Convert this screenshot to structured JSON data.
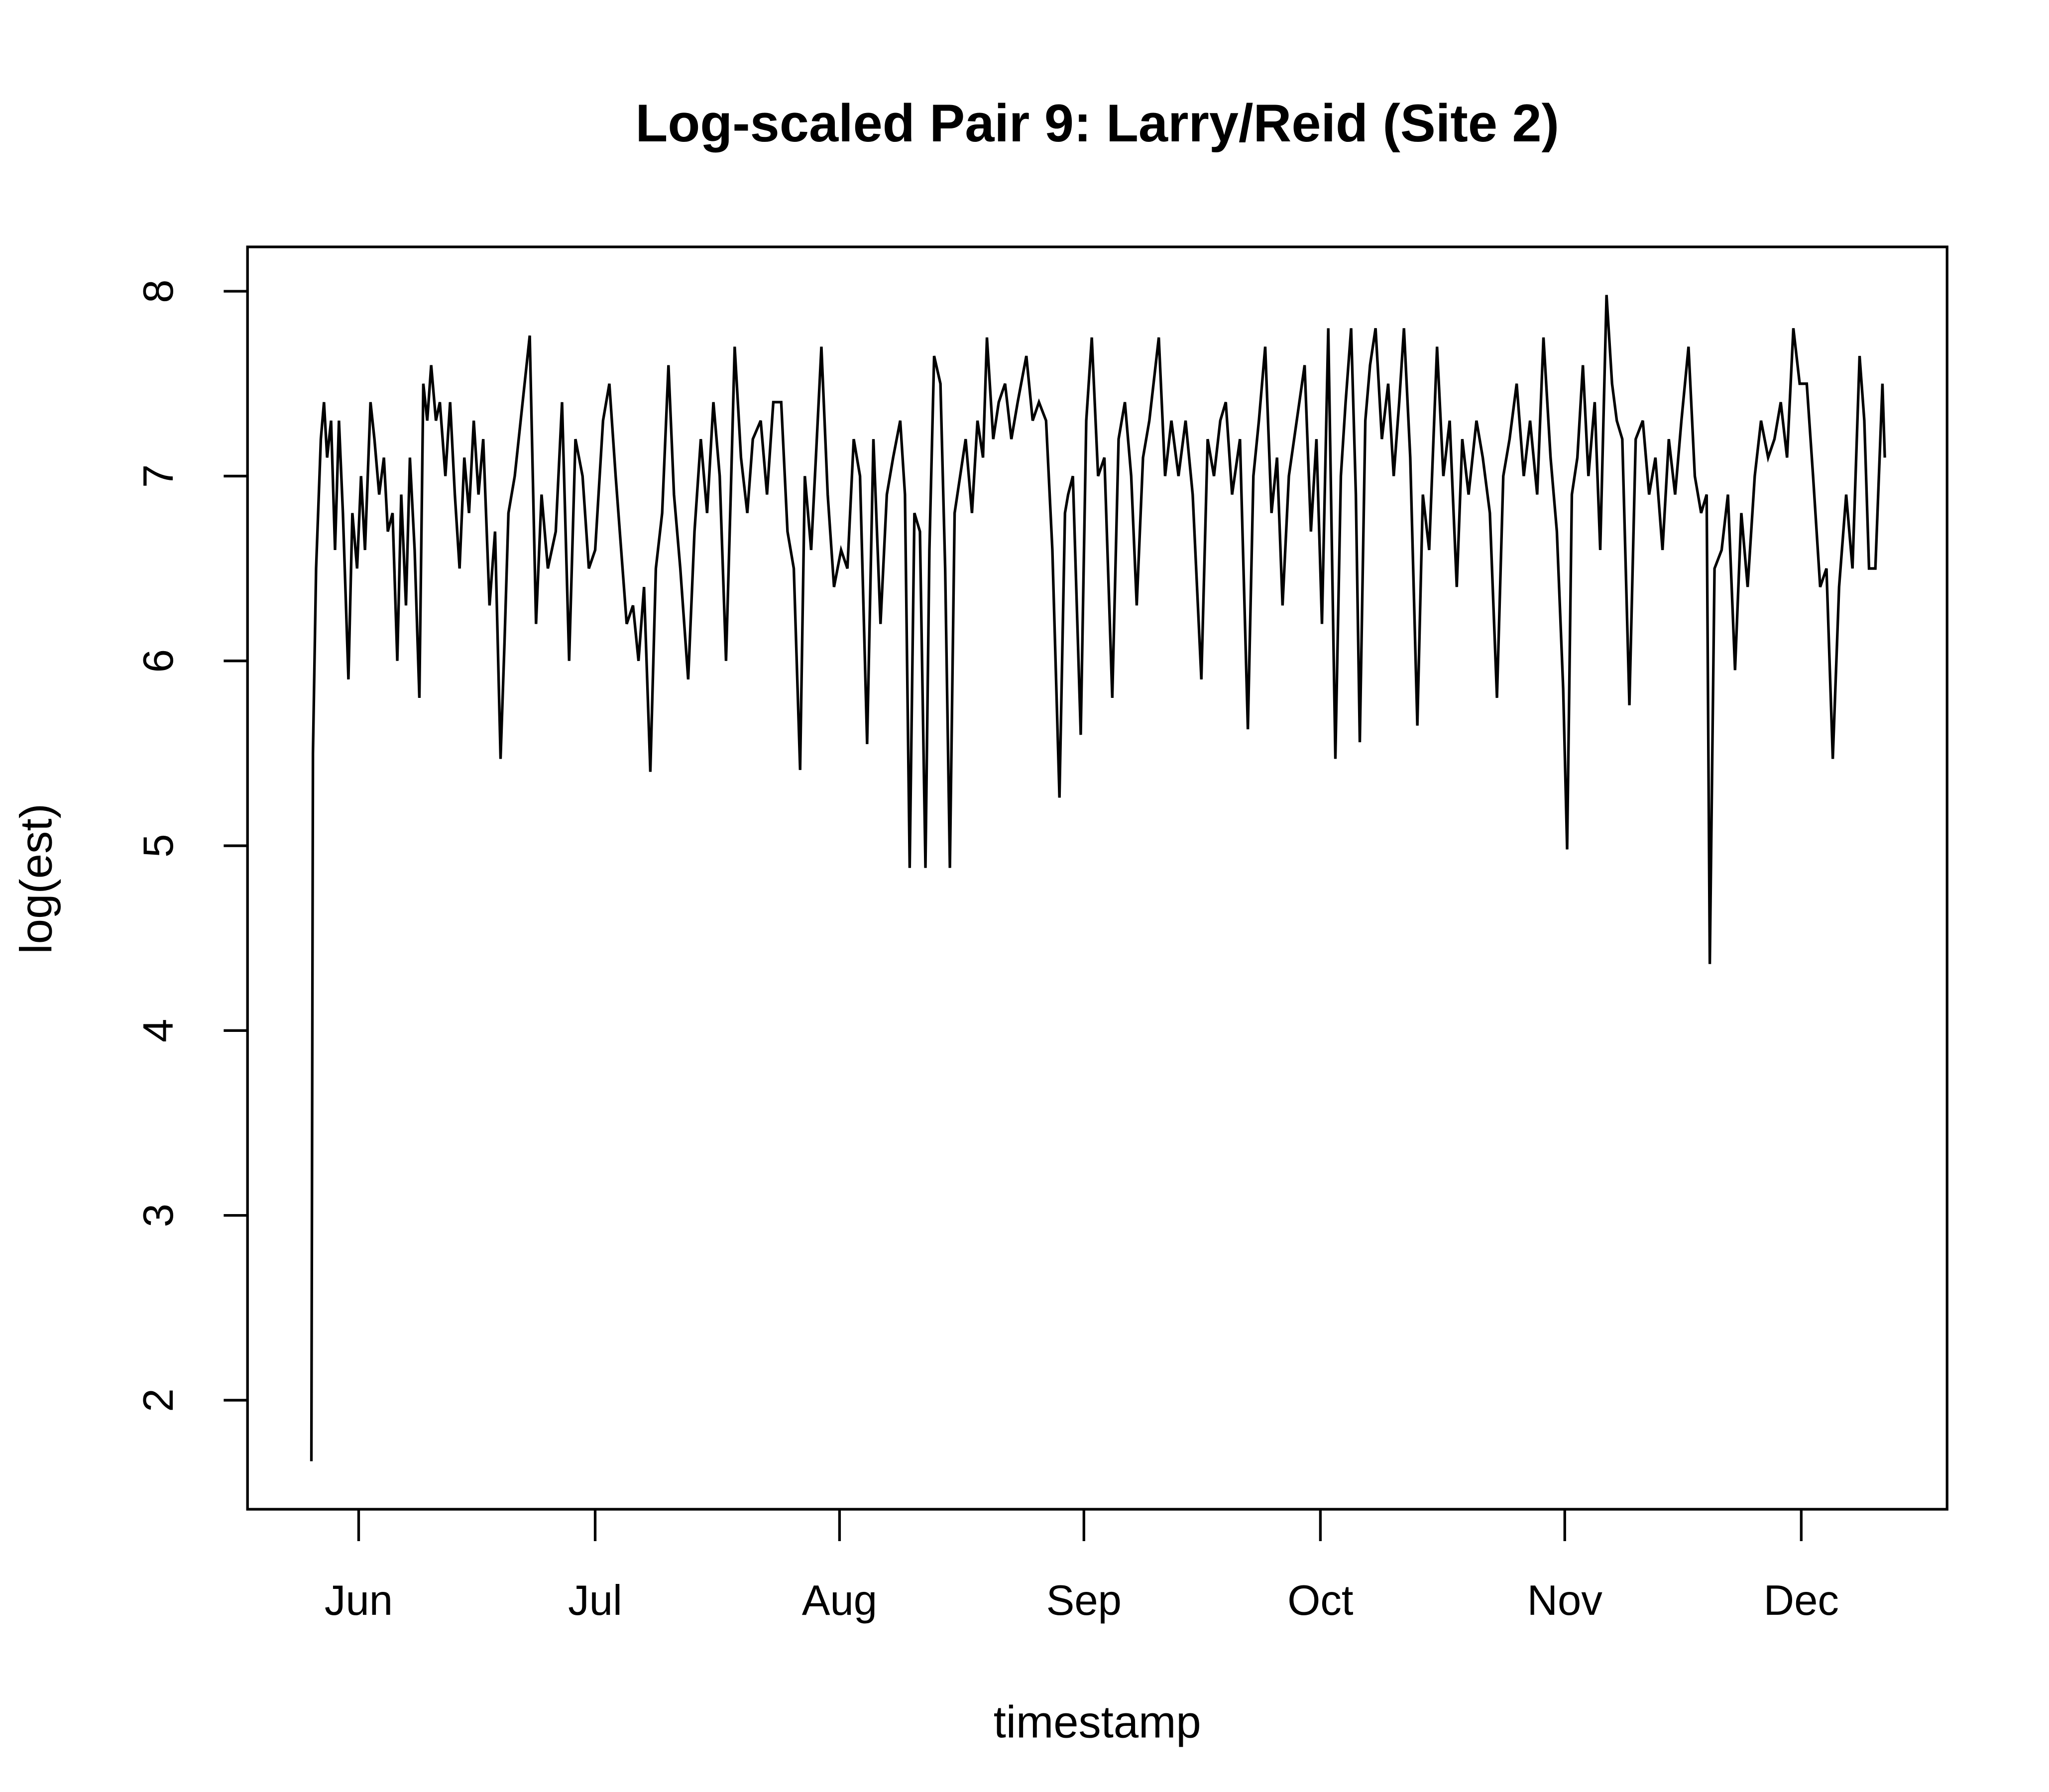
{
  "chart_data": {
    "type": "line",
    "title": "Log-scaled Pair 9: Larry/Reid (Site 2)",
    "x_label": "timestamp",
    "y_label": "log(est)",
    "color": "#000000",
    "xlim": [
      137.9,
      353.5
    ],
    "xticks": [
      {
        "value": 152,
        "label": "Jun"
      },
      {
        "value": 182,
        "label": "Jul"
      },
      {
        "value": 213,
        "label": "Aug"
      },
      {
        "value": 244,
        "label": "Sep"
      },
      {
        "value": 274,
        "label": "Oct"
      },
      {
        "value": 305,
        "label": "Nov"
      },
      {
        "value": 335,
        "label": "Dec"
      }
    ],
    "ylim": [
      1.41,
      8.24
    ],
    "yticks": [
      2,
      3,
      4,
      5,
      6,
      7,
      8
    ],
    "x": [
      146.0,
      146.2,
      146.6,
      147.2,
      147.6,
      148.0,
      148.5,
      149.0,
      149.5,
      150.0,
      150.7,
      151.2,
      151.8,
      152.3,
      152.8,
      153.5,
      154.0,
      154.6,
      155.2,
      155.7,
      156.3,
      156.9,
      157.4,
      158.0,
      158.5,
      159.1,
      159.7,
      160.2,
      160.7,
      161.2,
      161.8,
      162.3,
      163.0,
      163.6,
      164.2,
      164.8,
      165.4,
      166.0,
      166.6,
      167.2,
      167.8,
      168.6,
      169.3,
      170.0,
      170.5,
      171.0,
      171.8,
      172.8,
      173.7,
      174.5,
      175.2,
      176.0,
      177.0,
      177.8,
      178.7,
      179.5,
      180.4,
      181.2,
      182.0,
      183.0,
      183.8,
      184.6,
      185.3,
      186.0,
      186.8,
      187.5,
      188.2,
      189.0,
      189.7,
      190.5,
      191.3,
      192.0,
      192.8,
      193.8,
      194.6,
      195.4,
      196.2,
      197.0,
      197.8,
      198.6,
      199.2,
      199.7,
      200.5,
      201.3,
      202.0,
      203.0,
      203.8,
      204.6,
      205.6,
      206.4,
      207.2,
      208.0,
      208.6,
      209.4,
      210.0,
      210.7,
      211.5,
      212.3,
      213.2,
      214.0,
      214.8,
      215.6,
      216.5,
      217.3,
      218.2,
      219.0,
      219.8,
      220.7,
      221.3,
      221.9,
      222.5,
      223.2,
      223.9,
      224.4,
      225.0,
      225.8,
      226.4,
      227.0,
      227.6,
      228.3,
      229.0,
      229.8,
      230.5,
      231.2,
      231.7,
      232.5,
      233.2,
      234.0,
      234.8,
      235.6,
      236.7,
      237.5,
      238.3,
      239.2,
      240.0,
      240.9,
      241.6,
      242.0,
      242.6,
      243.6,
      244.3,
      245.0,
      245.8,
      246.6,
      247.6,
      248.4,
      249.2,
      250.0,
      250.7,
      251.5,
      252.3,
      253.5,
      254.3,
      255.1,
      256.0,
      256.9,
      257.8,
      258.9,
      259.7,
      260.5,
      261.3,
      262.0,
      262.8,
      263.8,
      264.8,
      265.5,
      266.2,
      267.0,
      267.8,
      268.5,
      269.2,
      270.0,
      271.0,
      272.0,
      272.8,
      273.5,
      274.2,
      275.0,
      275.9,
      276.6,
      277.2,
      277.9,
      278.5,
      279.0,
      279.7,
      280.3,
      281.0,
      281.8,
      282.6,
      283.3,
      284.0,
      284.6,
      285.4,
      286.3,
      287.0,
      287.8,
      288.8,
      289.6,
      290.4,
      291.3,
      292.0,
      292.8,
      293.8,
      294.6,
      295.5,
      296.4,
      297.2,
      298.0,
      298.9,
      299.8,
      300.6,
      301.5,
      302.3,
      303.2,
      304.0,
      304.8,
      305.3,
      305.9,
      306.6,
      307.3,
      308.0,
      308.8,
      309.5,
      310.3,
      311.0,
      311.6,
      312.3,
      313.2,
      314.0,
      314.9,
      315.7,
      316.5,
      317.4,
      318.2,
      319.0,
      319.8,
      320.7,
      321.5,
      322.3,
      323.0,
      323.4,
      324.0,
      324.9,
      325.7,
      326.6,
      327.4,
      328.2,
      329.1,
      329.9,
      330.8,
      331.6,
      332.4,
      333.2,
      334.0,
      334.8,
      335.7,
      336.5,
      337.4,
      338.2,
      339.0,
      339.8,
      340.7,
      341.5,
      342.4,
      343.0,
      343.6,
      344.4,
      345.3,
      345.6
    ],
    "values": [
      1.67,
      5.5,
      6.5,
      7.2,
      7.4,
      7.1,
      7.3,
      6.6,
      7.3,
      6.8,
      5.9,
      6.8,
      6.5,
      7.0,
      6.6,
      7.4,
      7.2,
      6.9,
      7.1,
      6.7,
      6.8,
      6.0,
      6.9,
      6.3,
      7.1,
      6.6,
      5.8,
      7.5,
      7.3,
      7.6,
      7.3,
      7.4,
      7.0,
      7.4,
      6.9,
      6.5,
      7.1,
      6.8,
      7.3,
      6.9,
      7.2,
      6.3,
      6.7,
      5.47,
      6.1,
      6.8,
      7.0,
      7.4,
      7.76,
      6.2,
      6.9,
      6.5,
      6.7,
      7.4,
      6.0,
      7.2,
      7.0,
      6.5,
      6.6,
      7.3,
      7.5,
      7.0,
      6.6,
      6.2,
      6.3,
      6.0,
      6.4,
      5.4,
      6.5,
      6.8,
      7.6,
      6.9,
      6.5,
      5.9,
      6.7,
      7.2,
      6.8,
      7.4,
      7.0,
      6.0,
      6.9,
      7.7,
      7.1,
      6.8,
      7.2,
      7.3,
      6.9,
      7.4,
      7.4,
      6.7,
      6.5,
      5.41,
      7.0,
      6.6,
      7.1,
      7.7,
      6.9,
      6.4,
      6.6,
      6.5,
      7.2,
      7.0,
      5.55,
      7.2,
      6.2,
      6.9,
      7.1,
      7.3,
      6.9,
      4.88,
      6.8,
      6.7,
      4.88,
      6.6,
      7.65,
      7.5,
      6.5,
      4.88,
      6.8,
      7.0,
      7.2,
      6.8,
      7.3,
      7.1,
      7.75,
      7.2,
      7.4,
      7.5,
      7.2,
      7.4,
      7.65,
      7.3,
      7.4,
      7.3,
      6.6,
      5.26,
      6.8,
      6.9,
      7.0,
      5.6,
      7.3,
      7.75,
      7.0,
      7.1,
      5.8,
      7.2,
      7.4,
      7.0,
      6.3,
      7.1,
      7.3,
      7.75,
      7.0,
      7.3,
      7.0,
      7.3,
      6.9,
      5.9,
      7.2,
      7.0,
      7.3,
      7.4,
      6.9,
      7.2,
      5.63,
      7.0,
      7.3,
      7.7,
      6.8,
      7.1,
      6.3,
      7.0,
      7.3,
      7.6,
      6.7,
      7.2,
      6.2,
      7.8,
      5.47,
      7.0,
      7.4,
      7.8,
      6.9,
      5.56,
      7.3,
      7.6,
      7.8,
      7.2,
      7.5,
      7.0,
      7.4,
      7.8,
      7.1,
      5.65,
      6.9,
      6.6,
      7.7,
      7.0,
      7.3,
      6.4,
      7.2,
      6.9,
      7.3,
      7.1,
      6.8,
      5.8,
      7.0,
      7.2,
      7.5,
      7.0,
      7.3,
      6.9,
      7.75,
      7.1,
      6.7,
      5.85,
      4.98,
      6.9,
      7.1,
      7.6,
      7.0,
      7.4,
      6.6,
      7.98,
      7.5,
      7.3,
      7.2,
      5.76,
      7.2,
      7.3,
      6.9,
      7.1,
      6.6,
      7.2,
      6.9,
      7.3,
      7.7,
      7.0,
      6.8,
      6.9,
      4.36,
      6.5,
      6.6,
      6.9,
      5.95,
      6.8,
      6.4,
      7.0,
      7.3,
      7.1,
      7.2,
      7.4,
      7.1,
      7.8,
      7.5,
      7.5,
      7.0,
      6.4,
      6.5,
      5.47,
      6.4,
      6.9,
      6.5,
      7.65,
      7.3,
      6.5,
      6.5,
      7.5,
      7.1
    ]
  }
}
